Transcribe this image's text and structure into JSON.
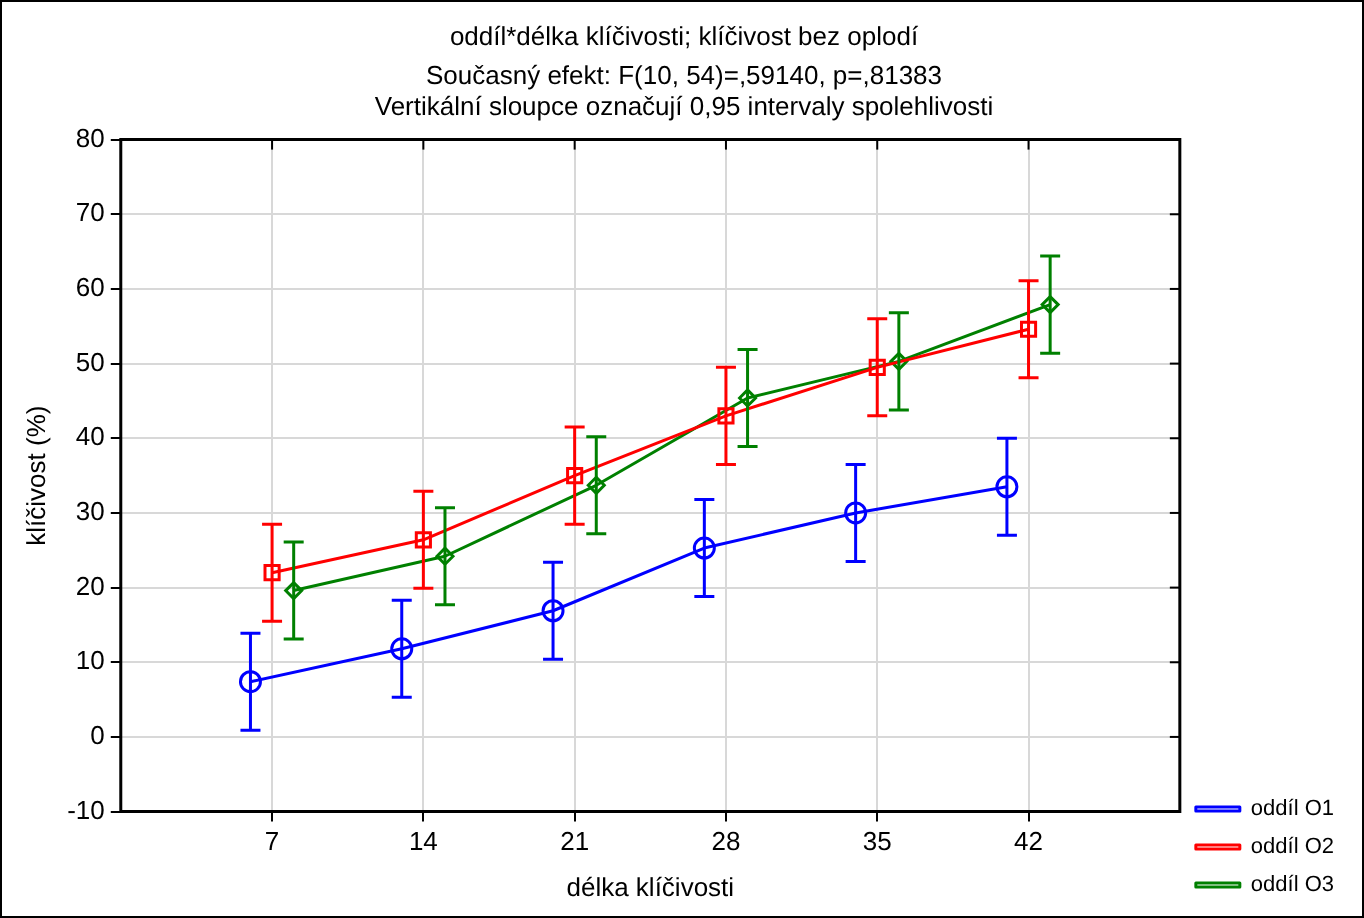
{
  "chart_data": {
    "type": "line",
    "title": "oddíl*délka klíčivosti; klíčivost bez oplodí",
    "subtitle": "Současný efekt: F(10, 54)=,59140, p=,81383",
    "annotations": [
      "Vertikální sloupce označují 0,95 intervaly spolehlivosti"
    ],
    "xlabel": "délka klíčivosti",
    "ylabel": "klíčivost (%)",
    "xlim": [
      0,
      49
    ],
    "xticks": [
      7,
      14,
      21,
      28,
      35,
      42
    ],
    "ylim": [
      -10,
      80
    ],
    "yticks": [
      -10,
      0,
      10,
      20,
      30,
      40,
      50,
      60,
      70,
      80
    ],
    "grid": true,
    "legend": "bottom right",
    "line_style": "solid",
    "series": [
      {
        "name": "oddíl O1",
        "color": "#0000ff",
        "marker": "circle",
        "x": [
          6,
          13,
          20,
          27,
          34,
          41
        ],
        "values": [
          7.4,
          11.8,
          16.9,
          25.3,
          30.0,
          33.5
        ],
        "errors": [
          6.5,
          6.5,
          6.5,
          6.5,
          6.5,
          6.5
        ]
      },
      {
        "name": "oddíl O2",
        "color": "#ff0000",
        "marker": "square",
        "x": [
          7,
          14,
          21,
          28,
          35,
          42
        ],
        "values": [
          22.0,
          26.4,
          35.0,
          43.0,
          49.5,
          54.6
        ],
        "errors": [
          6.5,
          6.5,
          6.5,
          6.5,
          6.5,
          6.5
        ]
      },
      {
        "name": "oddíl O3",
        "color": "#008000",
        "marker": "diamond",
        "x": [
          8,
          15,
          22,
          29,
          36,
          43
        ],
        "values": [
          19.6,
          24.2,
          33.7,
          45.4,
          50.3,
          57.9
        ],
        "errors": [
          6.5,
          6.5,
          6.5,
          6.5,
          6.5,
          6.5
        ]
      }
    ]
  }
}
